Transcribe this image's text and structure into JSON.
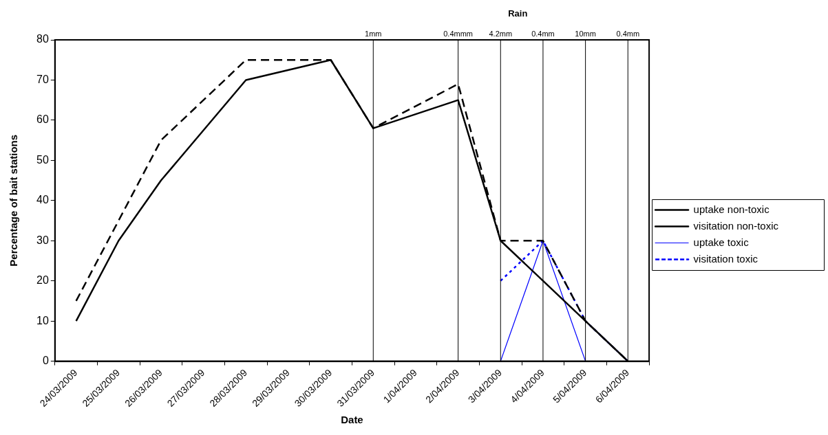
{
  "chart_data": {
    "type": "line",
    "xlabel": "Date",
    "ylabel": "Percentage of bait stations",
    "annotations": [
      "Rain"
    ],
    "categories": [
      "24/03/2009",
      "25/03/2009",
      "26/03/2009",
      "27/03/2009",
      "28/03/2009",
      "29/03/2009",
      "30/03/2009",
      "31/03/2009",
      "1/04/2009",
      "2/04/2009",
      "3/04/2009",
      "4/04/2009",
      "5/04/2009",
      "6/04/2009"
    ],
    "series": [
      {
        "name": "uptake non-toxic",
        "color": "#000000",
        "line_style": "solid",
        "values": [
          10,
          30,
          45,
          null,
          70,
          null,
          75,
          58,
          null,
          65,
          30,
          20,
          10,
          0
        ]
      },
      {
        "name": "visitation non-toxic",
        "color": "#000000",
        "line_style": "dashed",
        "values": [
          15,
          null,
          55,
          null,
          75,
          null,
          75,
          58,
          null,
          69,
          30,
          30,
          10,
          0
        ]
      },
      {
        "name": "uptake toxic",
        "color": "#0000ff",
        "line_style": "solid",
        "values": [
          null,
          null,
          null,
          null,
          null,
          null,
          null,
          null,
          null,
          null,
          0,
          30,
          0,
          0
        ]
      },
      {
        "name": "visitation toxic",
        "color": "#0000ff",
        "line_style": "dotted",
        "values": [
          null,
          null,
          null,
          null,
          null,
          null,
          null,
          null,
          null,
          null,
          20,
          30,
          10,
          0
        ]
      }
    ],
    "ref_lines": [
      {
        "axis": "x",
        "value": "31/03/2009",
        "label": "1mm"
      },
      {
        "axis": "x",
        "value": "2/04/2009",
        "label": "0.4mmm"
      },
      {
        "axis": "x",
        "value": "3/04/2009",
        "label": "4.2mm"
      },
      {
        "axis": "x",
        "value": "4/04/2009",
        "label": "0.4mm"
      },
      {
        "axis": "x",
        "value": "5/04/2009",
        "label": "10mm"
      },
      {
        "axis": "x",
        "value": "6/04/2009",
        "label": "0.4mm"
      }
    ],
    "ylim": [
      0,
      80
    ],
    "yticks": [
      0,
      10,
      20,
      30,
      40,
      50,
      60,
      70,
      80
    ],
    "grid": false,
    "legend": "right",
    "marker": "none"
  }
}
